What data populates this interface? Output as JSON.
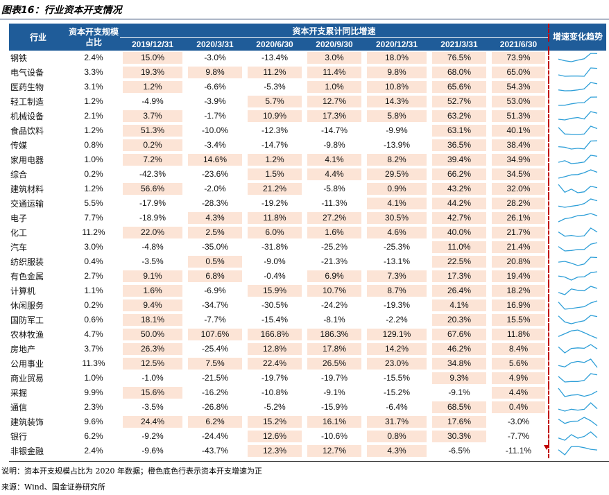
{
  "title": "图表16：行业资本开支情况",
  "headers": {
    "industry": "行业",
    "scale": "资本开支规模占比",
    "group": "资本开支累计同比增速",
    "trend": "增速变化趋势",
    "periods": [
      "2019/12/31",
      "2020/3/31",
      "2020/6/30",
      "2020/9/30",
      "2020/12/31",
      "2021/3/31",
      "2021/6/30"
    ]
  },
  "rows": [
    {
      "name": "钢铁",
      "scale": "2.4%",
      "values": [
        "15.0%",
        "-3.0%",
        "-13.4%",
        "3.0%",
        "18.0%",
        "76.5%",
        "73.9%"
      ]
    },
    {
      "name": "电气设备",
      "scale": "3.3%",
      "values": [
        "19.3%",
        "9.8%",
        "11.2%",
        "11.4%",
        "9.8%",
        "68.0%",
        "65.0%"
      ]
    },
    {
      "name": "医药生物",
      "scale": "3.1%",
      "values": [
        "1.2%",
        "-6.6%",
        "-5.3%",
        "1.0%",
        "10.8%",
        "65.6%",
        "54.3%"
      ]
    },
    {
      "name": "轻工制造",
      "scale": "1.2%",
      "values": [
        "-4.9%",
        "-3.9%",
        "5.7%",
        "12.7%",
        "14.3%",
        "52.7%",
        "53.0%"
      ]
    },
    {
      "name": "机械设备",
      "scale": "2.1%",
      "values": [
        "3.7%",
        "-1.7%",
        "10.9%",
        "17.3%",
        "5.8%",
        "63.2%",
        "51.3%"
      ]
    },
    {
      "name": "食品饮料",
      "scale": "1.2%",
      "values": [
        "51.3%",
        "-10.0%",
        "-12.3%",
        "-14.7%",
        "-9.9%",
        "63.1%",
        "40.1%"
      ]
    },
    {
      "name": "传媒",
      "scale": "0.8%",
      "values": [
        "0.2%",
        "-3.4%",
        "-14.7%",
        "-9.8%",
        "-13.9%",
        "36.5%",
        "38.4%"
      ]
    },
    {
      "name": "家用电器",
      "scale": "1.0%",
      "values": [
        "7.2%",
        "14.6%",
        "1.2%",
        "4.1%",
        "8.2%",
        "39.4%",
        "34.9%"
      ]
    },
    {
      "name": "综合",
      "scale": "0.2%",
      "values": [
        "-42.3%",
        "-23.6%",
        "1.5%",
        "4.4%",
        "29.5%",
        "66.2%",
        "34.5%"
      ]
    },
    {
      "name": "建筑材料",
      "scale": "1.2%",
      "values": [
        "56.6%",
        "-2.0%",
        "21.2%",
        "-5.8%",
        "0.9%",
        "43.2%",
        "32.0%"
      ]
    },
    {
      "name": "交通运输",
      "scale": "5.5%",
      "values": [
        "-17.9%",
        "-28.3%",
        "-19.2%",
        "-11.3%",
        "4.1%",
        "44.2%",
        "28.2%"
      ]
    },
    {
      "name": "电子",
      "scale": "7.7%",
      "values": [
        "-18.9%",
        "4.3%",
        "11.8%",
        "27.2%",
        "30.5%",
        "42.7%",
        "26.1%"
      ]
    },
    {
      "name": "化工",
      "scale": "11.2%",
      "values": [
        "22.0%",
        "2.5%",
        "6.0%",
        "1.6%",
        "4.6%",
        "40.0%",
        "21.7%"
      ]
    },
    {
      "name": "汽车",
      "scale": "3.0%",
      "values": [
        "-4.8%",
        "-35.0%",
        "-31.8%",
        "-25.2%",
        "-25.3%",
        "11.0%",
        "21.4%"
      ]
    },
    {
      "name": "纺织服装",
      "scale": "0.4%",
      "values": [
        "-3.5%",
        "0.5%",
        "-9.0%",
        "-21.3%",
        "-13.1%",
        "22.5%",
        "20.8%"
      ]
    },
    {
      "name": "有色金属",
      "scale": "2.7%",
      "values": [
        "9.1%",
        "6.8%",
        "-0.4%",
        "6.9%",
        "7.3%",
        "17.3%",
        "19.4%"
      ]
    },
    {
      "name": "计算机",
      "scale": "1.1%",
      "values": [
        "1.6%",
        "-6.9%",
        "15.9%",
        "10.7%",
        "8.7%",
        "26.4%",
        "18.2%"
      ]
    },
    {
      "name": "休闲服务",
      "scale": "0.2%",
      "values": [
        "9.4%",
        "-34.7%",
        "-30.5%",
        "-24.2%",
        "-19.3%",
        "4.1%",
        "16.9%"
      ]
    },
    {
      "name": "国防军工",
      "scale": "0.6%",
      "values": [
        "18.1%",
        "-7.7%",
        "-15.4%",
        "-8.1%",
        "-2.2%",
        "20.3%",
        "15.5%"
      ]
    },
    {
      "name": "农林牧渔",
      "scale": "4.7%",
      "values": [
        "50.0%",
        "107.6%",
        "166.8%",
        "186.3%",
        "129.1%",
        "67.6%",
        "11.8%"
      ]
    },
    {
      "name": "房地产",
      "scale": "3.7%",
      "values": [
        "26.3%",
        "-25.4%",
        "12.8%",
        "17.8%",
        "14.2%",
        "46.2%",
        "8.4%"
      ]
    },
    {
      "name": "公用事业",
      "scale": "11.3%",
      "values": [
        "12.5%",
        "7.5%",
        "22.4%",
        "26.5%",
        "23.0%",
        "34.8%",
        "5.6%"
      ]
    },
    {
      "name": "商业贸易",
      "scale": "1.0%",
      "values": [
        "-1.0%",
        "-21.5%",
        "-19.7%",
        "-19.7%",
        "-15.5%",
        "9.3%",
        "4.9%"
      ]
    },
    {
      "name": "采掘",
      "scale": "9.9%",
      "values": [
        "15.6%",
        "-16.2%",
        "-10.8%",
        "-9.1%",
        "-15.2%",
        "-9.1%",
        "4.4%"
      ]
    },
    {
      "name": "通信",
      "scale": "2.3%",
      "values": [
        "-3.5%",
        "-26.8%",
        "-5.2%",
        "-15.9%",
        "-6.4%",
        "68.5%",
        "0.4%"
      ]
    },
    {
      "name": "建筑装饰",
      "scale": "9.6%",
      "values": [
        "24.4%",
        "6.2%",
        "15.2%",
        "16.1%",
        "31.7%",
        "17.6%",
        "-3.0%"
      ]
    },
    {
      "name": "银行",
      "scale": "6.2%",
      "values": [
        "-9.2%",
        "-24.4%",
        "12.6%",
        "-10.6%",
        "0.8%",
        "30.3%",
        "-7.7%"
      ]
    },
    {
      "name": "非银金融",
      "scale": "2.4%",
      "values": [
        "-9.6%",
        "-43.7%",
        "12.3%",
        "12.7%",
        "4.3%",
        "-6.5%",
        "-11.1%"
      ]
    }
  ],
  "colors": {
    "header": "#1f5c99",
    "positive_fill": "#fce4d6",
    "spark": "#2e9fd8",
    "divider": "#c00000"
  },
  "note": "说明：资本开支规模占比为 2020 年数据；橙色底色行表示资本开支增速为正",
  "source": "来源：Wind、国金证券研究所"
}
